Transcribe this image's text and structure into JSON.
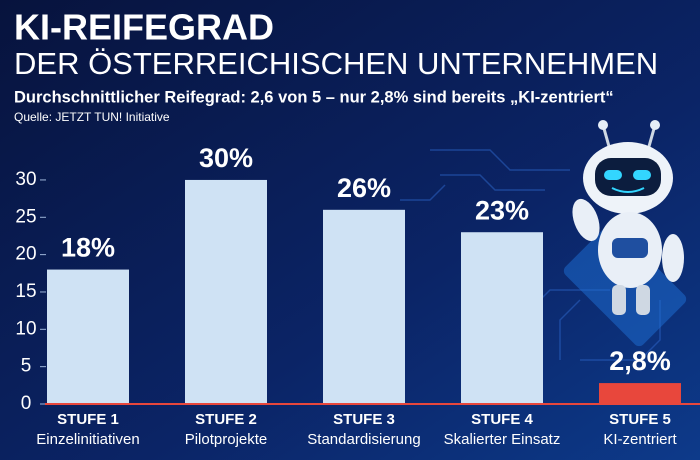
{
  "chart_data": {
    "type": "bar",
    "title": "KI-REIFEGRAD",
    "subtitle": "DER ÖSTERREICHISCHEN UNTERNEHMEN",
    "description": "Durchschnittlicher Reifegrad: 2,6 von 5 – nur 2,8% sind bereits „KI-zentriert“",
    "source": "Quelle: JETZT TUN! Initiative",
    "categories": [
      [
        "STUFE 1",
        "Einzelinitiativen"
      ],
      [
        "STUFE 2",
        "Pilotprojekte"
      ],
      [
        "STUFE 3",
        "Standardisierung"
      ],
      [
        "STUFE 4",
        "Skalierter Einsatz"
      ],
      [
        "STUFE 5",
        "KI-zentriert"
      ]
    ],
    "values": [
      18,
      30,
      26,
      23,
      2.8
    ],
    "value_labels": [
      "18%",
      "30%",
      "26%",
      "23%",
      "2,8%"
    ],
    "colors": [
      "#cfe2f4",
      "#cfe2f4",
      "#cfe2f4",
      "#cfe2f4",
      "#e8473c"
    ],
    "ylim": [
      0,
      32
    ],
    "yticks": [
      0,
      5,
      10,
      15,
      20,
      25,
      30
    ]
  }
}
